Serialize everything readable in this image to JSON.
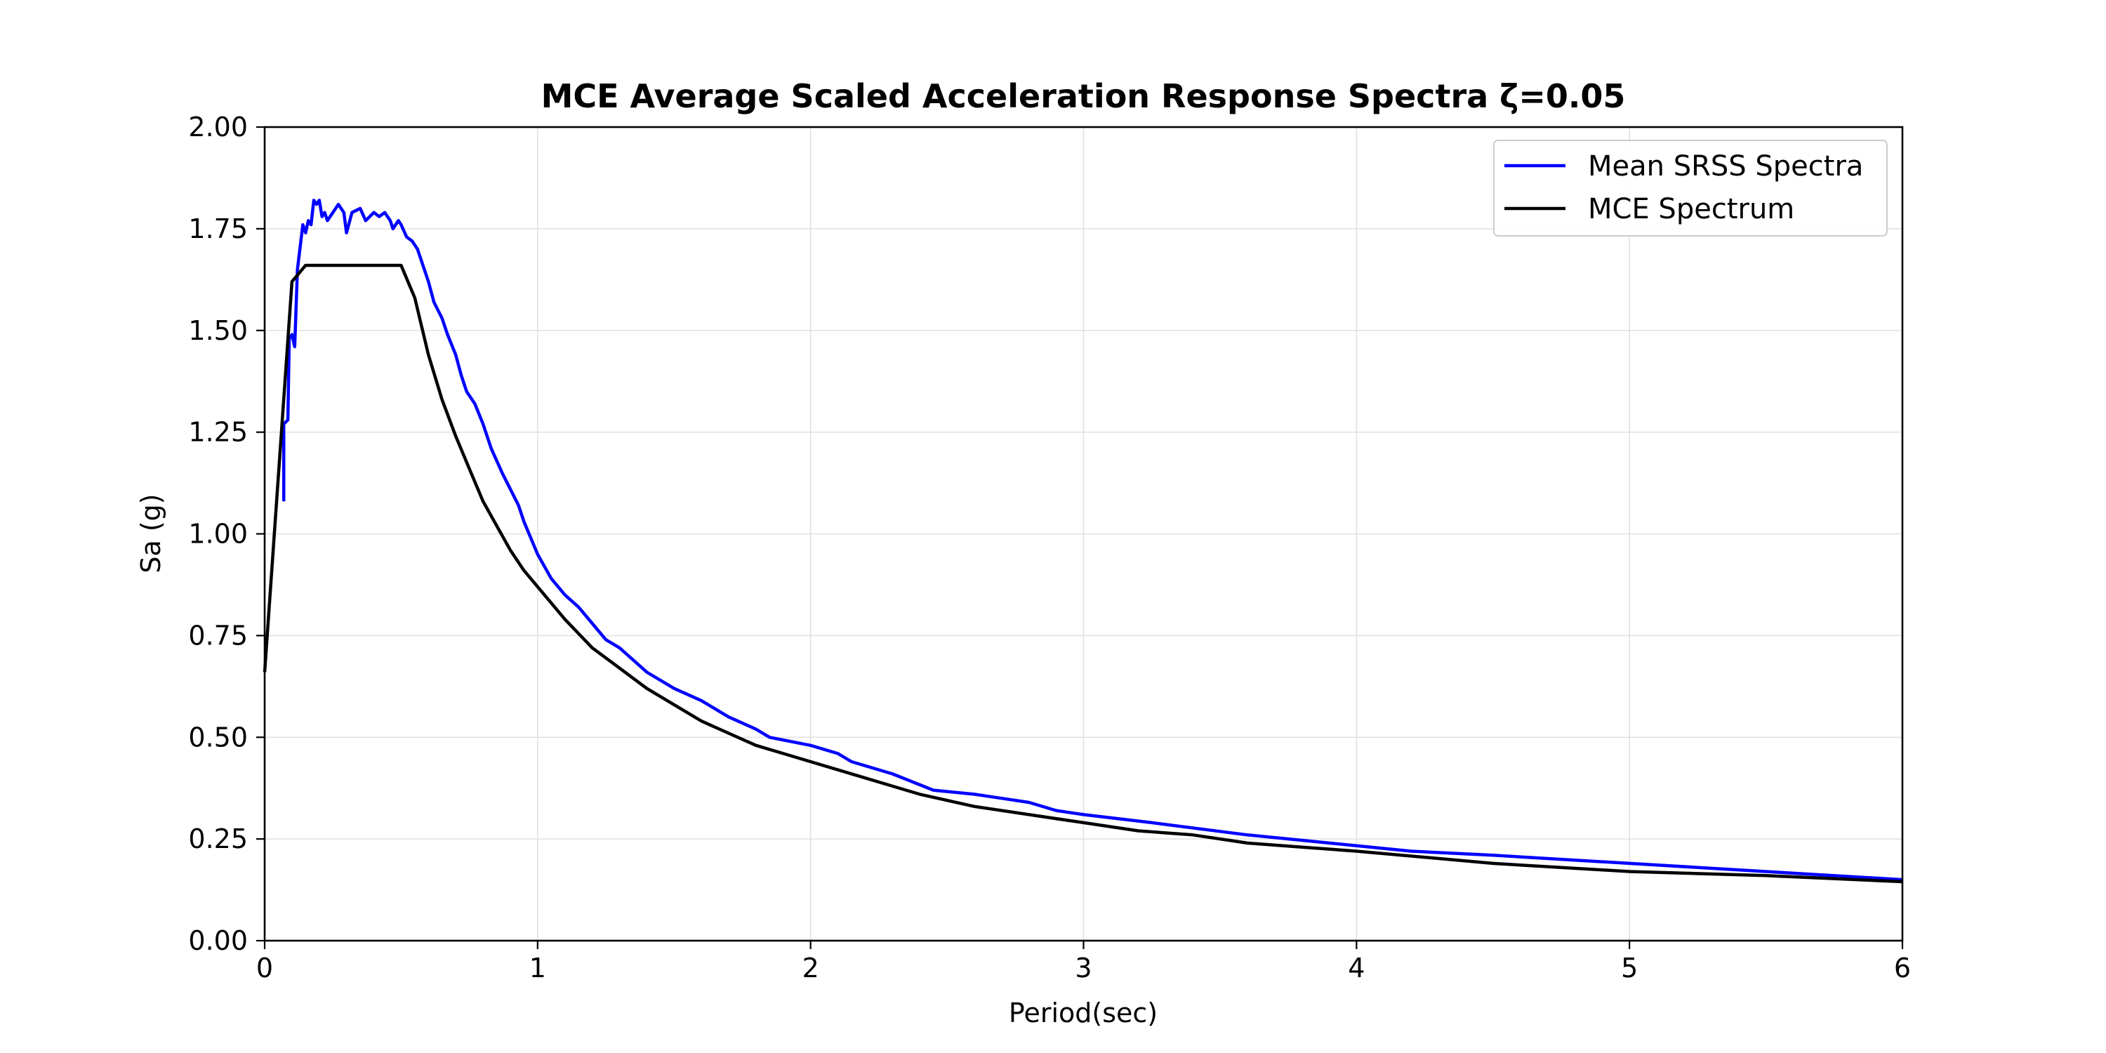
{
  "chart_data": {
    "type": "line",
    "title": "MCE Average Scaled Acceleration Response Spectra ζ=0.05",
    "xlabel": "Period(sec)",
    "ylabel": "Sa (g)",
    "xlim": [
      0,
      6
    ],
    "ylim": [
      0,
      2
    ],
    "x_ticks": [
      0,
      1,
      2,
      3,
      4,
      5,
      6
    ],
    "x_tick_labels": [
      "0",
      "1",
      "2",
      "3",
      "4",
      "5",
      "6"
    ],
    "y_ticks": [
      0,
      0.25,
      0.5,
      0.75,
      1.0,
      1.25,
      1.5,
      1.75,
      2.0
    ],
    "y_tick_labels": [
      "0.00",
      "0.25",
      "0.50",
      "0.75",
      "1.00",
      "1.25",
      "1.50",
      "1.75",
      "2.00"
    ],
    "grid": true,
    "legend_position": "top-right",
    "series": [
      {
        "name": "Mean SRSS Spectra",
        "color": "#0000ff",
        "points": [
          [
            0.07,
            1.08
          ],
          [
            0.07,
            1.27
          ],
          [
            0.085,
            1.28
          ],
          [
            0.09,
            1.48
          ],
          [
            0.1,
            1.49
          ],
          [
            0.11,
            1.46
          ],
          [
            0.12,
            1.65
          ],
          [
            0.14,
            1.76
          ],
          [
            0.15,
            1.74
          ],
          [
            0.16,
            1.77
          ],
          [
            0.17,
            1.76
          ],
          [
            0.18,
            1.82
          ],
          [
            0.19,
            1.81
          ],
          [
            0.2,
            1.82
          ],
          [
            0.21,
            1.78
          ],
          [
            0.22,
            1.79
          ],
          [
            0.23,
            1.77
          ],
          [
            0.25,
            1.79
          ],
          [
            0.27,
            1.81
          ],
          [
            0.29,
            1.79
          ],
          [
            0.3,
            1.74
          ],
          [
            0.32,
            1.79
          ],
          [
            0.35,
            1.8
          ],
          [
            0.37,
            1.77
          ],
          [
            0.4,
            1.79
          ],
          [
            0.42,
            1.78
          ],
          [
            0.44,
            1.79
          ],
          [
            0.46,
            1.77
          ],
          [
            0.47,
            1.75
          ],
          [
            0.49,
            1.77
          ],
          [
            0.5,
            1.76
          ],
          [
            0.52,
            1.73
          ],
          [
            0.54,
            1.72
          ],
          [
            0.56,
            1.7
          ],
          [
            0.58,
            1.66
          ],
          [
            0.6,
            1.62
          ],
          [
            0.62,
            1.57
          ],
          [
            0.65,
            1.53
          ],
          [
            0.67,
            1.49
          ],
          [
            0.7,
            1.44
          ],
          [
            0.72,
            1.39
          ],
          [
            0.74,
            1.35
          ],
          [
            0.77,
            1.32
          ],
          [
            0.8,
            1.27
          ],
          [
            0.83,
            1.21
          ],
          [
            0.87,
            1.15
          ],
          [
            0.9,
            1.11
          ],
          [
            0.93,
            1.07
          ],
          [
            0.95,
            1.03
          ],
          [
            1.0,
            0.95
          ],
          [
            1.05,
            0.89
          ],
          [
            1.1,
            0.85
          ],
          [
            1.15,
            0.82
          ],
          [
            1.2,
            0.78
          ],
          [
            1.25,
            0.74
          ],
          [
            1.3,
            0.72
          ],
          [
            1.35,
            0.69
          ],
          [
            1.4,
            0.66
          ],
          [
            1.5,
            0.62
          ],
          [
            1.6,
            0.59
          ],
          [
            1.7,
            0.55
          ],
          [
            1.8,
            0.52
          ],
          [
            1.85,
            0.5
          ],
          [
            2.0,
            0.48
          ],
          [
            2.1,
            0.46
          ],
          [
            2.15,
            0.44
          ],
          [
            2.3,
            0.41
          ],
          [
            2.45,
            0.37
          ],
          [
            2.6,
            0.36
          ],
          [
            2.7,
            0.35
          ],
          [
            2.8,
            0.34
          ],
          [
            2.9,
            0.32
          ],
          [
            3.0,
            0.31
          ],
          [
            3.25,
            0.29
          ],
          [
            3.6,
            0.26
          ],
          [
            3.9,
            0.24
          ],
          [
            4.2,
            0.22
          ],
          [
            4.5,
            0.21
          ],
          [
            5.0,
            0.19
          ],
          [
            5.5,
            0.17
          ],
          [
            6.0,
            0.15
          ]
        ]
      },
      {
        "name": "MCE Spectrum",
        "color": "#000000",
        "points": [
          [
            0.0,
            0.66
          ],
          [
            0.1,
            1.62
          ],
          [
            0.15,
            1.66
          ],
          [
            0.5,
            1.66
          ],
          [
            0.55,
            1.58
          ],
          [
            0.6,
            1.44
          ],
          [
            0.65,
            1.33
          ],
          [
            0.7,
            1.24
          ],
          [
            0.75,
            1.16
          ],
          [
            0.8,
            1.08
          ],
          [
            0.85,
            1.02
          ],
          [
            0.9,
            0.96
          ],
          [
            0.95,
            0.91
          ],
          [
            1.0,
            0.87
          ],
          [
            1.1,
            0.79
          ],
          [
            1.2,
            0.72
          ],
          [
            1.3,
            0.67
          ],
          [
            1.4,
            0.62
          ],
          [
            1.5,
            0.58
          ],
          [
            1.6,
            0.54
          ],
          [
            1.7,
            0.51
          ],
          [
            1.8,
            0.48
          ],
          [
            1.9,
            0.46
          ],
          [
            2.0,
            0.44
          ],
          [
            2.2,
            0.4
          ],
          [
            2.4,
            0.36
          ],
          [
            2.6,
            0.33
          ],
          [
            2.8,
            0.31
          ],
          [
            3.0,
            0.29
          ],
          [
            3.2,
            0.27
          ],
          [
            3.4,
            0.26
          ],
          [
            3.6,
            0.24
          ],
          [
            3.8,
            0.23
          ],
          [
            4.0,
            0.22
          ],
          [
            4.5,
            0.19
          ],
          [
            5.0,
            0.17
          ],
          [
            5.5,
            0.16
          ],
          [
            6.0,
            0.145
          ]
        ]
      }
    ]
  }
}
